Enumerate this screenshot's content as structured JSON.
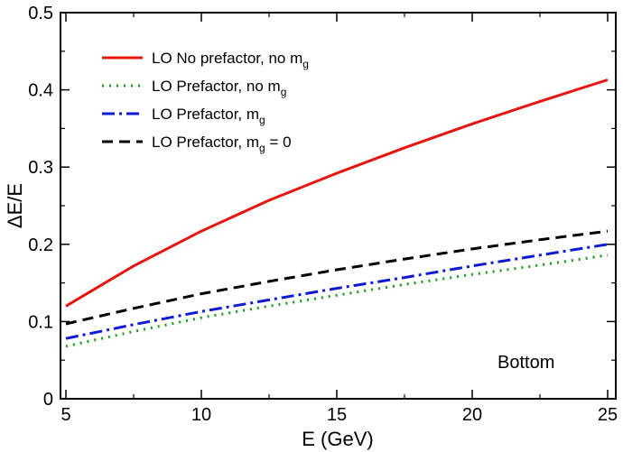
{
  "chart_data": {
    "type": "line",
    "xlabel": "E (GeV)",
    "ylabel": "ΔE/E",
    "xlim": [
      4.8,
      25.3
    ],
    "ylim": [
      0,
      0.5
    ],
    "xticks": [
      5,
      10,
      15,
      20,
      25
    ],
    "yticks": [
      0,
      0.1,
      0.2,
      0.3,
      0.4,
      0.5
    ],
    "xtick_labels": [
      "5",
      "10",
      "15",
      "20",
      "25"
    ],
    "ytick_labels": [
      "0",
      "0.1",
      "0.2",
      "0.3",
      "0.4",
      "0.5"
    ],
    "grid": false,
    "legend_position": "top-left",
    "annotation": "Bottom",
    "x": [
      5,
      7.5,
      10,
      12.5,
      15,
      17.5,
      20,
      22.5,
      25
    ],
    "series": [
      {
        "name": "LO No prefactor, no m",
        "name_sub": "g",
        "name_suffix": "",
        "color": "#e8140f",
        "style": "solid",
        "values": [
          0.12,
          0.172,
          0.217,
          0.257,
          0.292,
          0.325,
          0.356,
          0.385,
          0.413
        ]
      },
      {
        "name": "LO Prefactor, no m",
        "name_sub": "g",
        "name_suffix": "",
        "color": "#1a9a1a",
        "style": "dotted",
        "values": [
          0.068,
          0.087,
          0.105,
          0.12,
          0.134,
          0.148,
          0.161,
          0.173,
          0.186
        ]
      },
      {
        "name": "LO Prefactor, m",
        "name_sub": "g",
        "name_suffix": "",
        "color": "#0f1ad4",
        "style": "dashdot",
        "values": [
          0.078,
          0.096,
          0.113,
          0.128,
          0.143,
          0.157,
          0.172,
          0.186,
          0.2
        ]
      },
      {
        "name": "LO Prefactor, m",
        "name_sub": "g",
        "name_suffix": " = 0",
        "color": "#000000",
        "style": "dashed",
        "values": [
          0.097,
          0.117,
          0.136,
          0.152,
          0.167,
          0.181,
          0.194,
          0.206,
          0.217
        ]
      }
    ]
  }
}
